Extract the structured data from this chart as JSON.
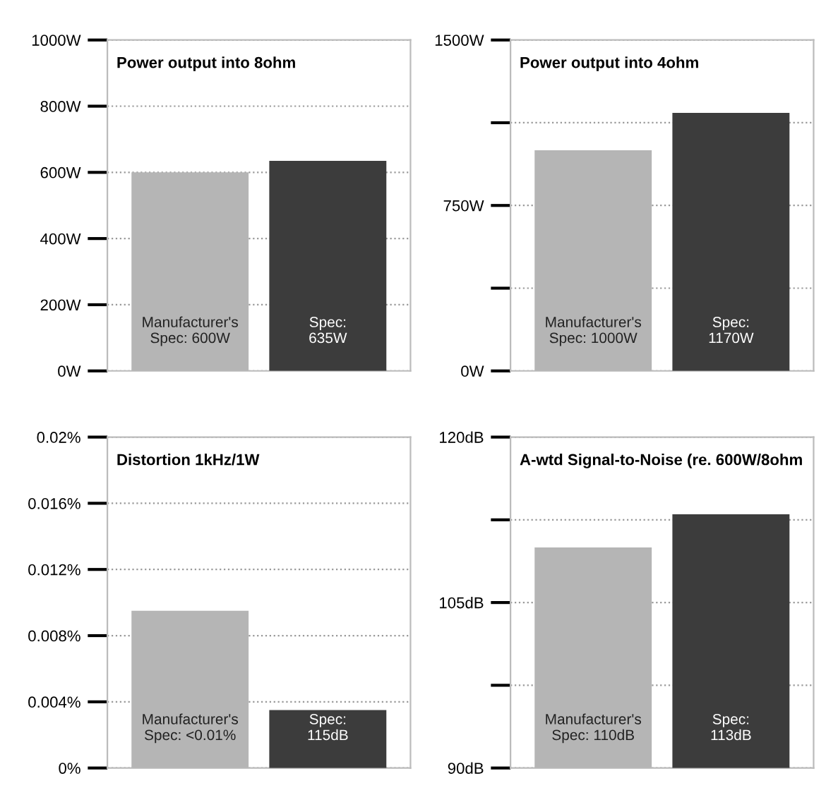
{
  "chart_data": [
    {
      "type": "bar",
      "title": "Power output into 8ohm",
      "categories": [
        "Manufacturer's\nSpec: 600W",
        "Spec:\n635W"
      ],
      "colors": [
        "#b5b5b5",
        "#3c3c3c"
      ],
      "values": [
        600,
        635
      ],
      "ylim": [
        0,
        1000
      ],
      "yticks": [
        {
          "value": 0,
          "label": "0W"
        },
        {
          "value": 200,
          "label": "200W"
        },
        {
          "value": 400,
          "label": "400W"
        },
        {
          "value": 600,
          "label": "600W"
        },
        {
          "value": 800,
          "label": "800W"
        },
        {
          "value": 1000,
          "label": "1000W"
        }
      ],
      "grid": "y",
      "tick_labels": "y"
    },
    {
      "type": "bar",
      "title": "Power output into 4ohm",
      "categories": [
        "Manufacturer's\nSpec: 1000W",
        "Spec:\n1170W"
      ],
      "colors": [
        "#b5b5b5",
        "#3c3c3c"
      ],
      "values": [
        1000,
        1170
      ],
      "ylim": [
        0,
        1500
      ],
      "yticks": [
        {
          "value": 0,
          "label": "0W"
        },
        {
          "value": 375,
          "label": null
        },
        {
          "value": 750,
          "label": "750W"
        },
        {
          "value": 1125,
          "label": null
        },
        {
          "value": 1500,
          "label": "1500W"
        }
      ],
      "grid": "y",
      "tick_labels": "y"
    },
    {
      "type": "bar",
      "title": "Distortion 1kHz/1W",
      "categories": [
        "Manufacturer's\nSpec: <0.01%",
        "Spec:\n115dB"
      ],
      "colors": [
        "#b5b5b5",
        "#3c3c3c"
      ],
      "values": [
        0.0095,
        0.0035
      ],
      "ylim": [
        0,
        0.02
      ],
      "yticks": [
        {
          "value": 0,
          "label": "0%"
        },
        {
          "value": 0.004,
          "label": "0.004%"
        },
        {
          "value": 0.008,
          "label": "0.008%"
        },
        {
          "value": 0.012,
          "label": "0.012%"
        },
        {
          "value": 0.016,
          "label": "0.016%"
        },
        {
          "value": 0.02,
          "label": "0.02%"
        }
      ],
      "grid": "y",
      "tick_labels": "y"
    },
    {
      "type": "bar",
      "title": "A-wtd Signal-to-Noise (re. 600W/8ohm",
      "categories": [
        "Manufacturer's\nSpec: 110dB",
        "Spec:\n113dB"
      ],
      "colors": [
        "#b5b5b5",
        "#3c3c3c"
      ],
      "values": [
        110,
        113
      ],
      "ylim": [
        90,
        120
      ],
      "yticks": [
        {
          "value": 90,
          "label": "90dB"
        },
        {
          "value": 97.5,
          "label": null
        },
        {
          "value": 105,
          "label": "105dB"
        },
        {
          "value": 112.5,
          "label": null
        },
        {
          "value": 120,
          "label": "120dB"
        }
      ],
      "grid": "y",
      "tick_labels": "y"
    }
  ]
}
